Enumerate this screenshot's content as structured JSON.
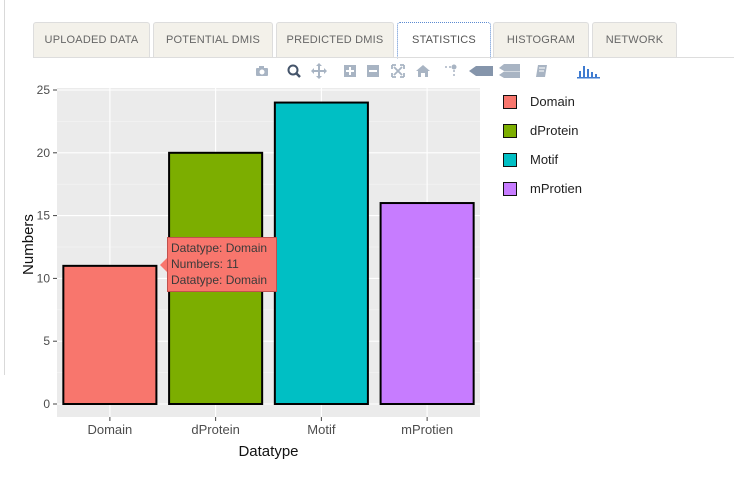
{
  "tabs": [
    {
      "label": "UPLOADED DATA"
    },
    {
      "label": "POTENTIAL DMIS"
    },
    {
      "label": "PREDICTED DMIS"
    },
    {
      "label": "STATISTICS"
    },
    {
      "label": "HISTOGRAM"
    },
    {
      "label": "NETWORK"
    }
  ],
  "active_tab": "STATISTICS",
  "toolbar": {
    "icons": [
      "camera-icon",
      "zoom-icon",
      "pan-icon",
      "zoom-in-icon",
      "zoom-out-icon",
      "autoscale-icon",
      "home-icon",
      "spike-lines-icon",
      "hover-closest-icon",
      "hover-compare-icon",
      "collaborate-icon",
      "plotly-logo-icon"
    ]
  },
  "tooltip": {
    "line1": "Datatype: Domain",
    "line2": "Numbers: 11",
    "line3": "Datatype: Domain"
  },
  "chart_data": {
    "type": "bar",
    "categories": [
      "Domain",
      "dProtein",
      "Motif",
      "mProtien"
    ],
    "values": [
      11,
      20,
      24,
      16
    ],
    "colors": [
      "#f8766d",
      "#7cae00",
      "#00bfc4",
      "#c77cff"
    ],
    "xlabel": "Datatype",
    "ylabel": "Numbers",
    "ylim": [
      0,
      25
    ],
    "yticks": [
      0,
      5,
      10,
      15,
      20,
      25
    ],
    "grid": true,
    "legend_position": "right",
    "legend": [
      {
        "name": "Domain",
        "color": "#f8766d"
      },
      {
        "name": "dProtein",
        "color": "#7cae00"
      },
      {
        "name": "Motif",
        "color": "#00bfc4"
      },
      {
        "name": "mProtien",
        "color": "#c77cff"
      }
    ]
  }
}
